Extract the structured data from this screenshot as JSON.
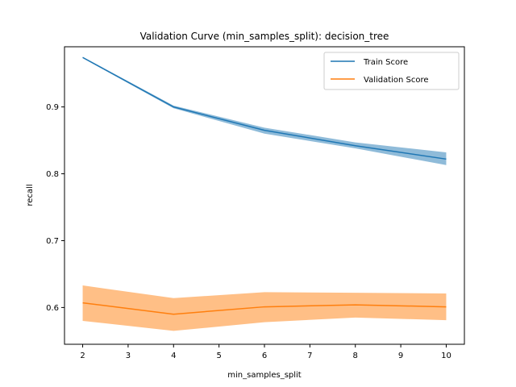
{
  "chart_data": {
    "type": "line",
    "title": "Validation Curve (min_samples_split): decision_tree",
    "xlabel": "min_samples_split",
    "ylabel": "recall",
    "x": [
      2,
      4,
      6,
      8,
      10
    ],
    "xlim": [
      1.6,
      10.4
    ],
    "ylim": [
      0.545,
      0.99
    ],
    "xticks": [
      2,
      3,
      4,
      5,
      6,
      7,
      8,
      9,
      10
    ],
    "yticks": [
      0.6,
      0.7,
      0.8,
      0.9
    ],
    "ytick_labels": [
      "0.6",
      "0.7",
      "0.8",
      "0.9"
    ],
    "grid": false,
    "legend_position": "top-right",
    "series": [
      {
        "name": "Train Score",
        "color": "#1f77b4",
        "values": [
          0.974,
          0.9,
          0.865,
          0.842,
          0.822
        ],
        "band_upper": [
          0.975,
          0.902,
          0.869,
          0.847,
          0.832
        ],
        "band_lower": [
          0.973,
          0.898,
          0.86,
          0.838,
          0.813
        ]
      },
      {
        "name": "Validation Score",
        "color": "#ff7f0e",
        "values": [
          0.607,
          0.59,
          0.601,
          0.604,
          0.601
        ],
        "band_upper": [
          0.633,
          0.614,
          0.623,
          0.622,
          0.621
        ],
        "band_lower": [
          0.58,
          0.565,
          0.578,
          0.585,
          0.581
        ]
      }
    ]
  }
}
